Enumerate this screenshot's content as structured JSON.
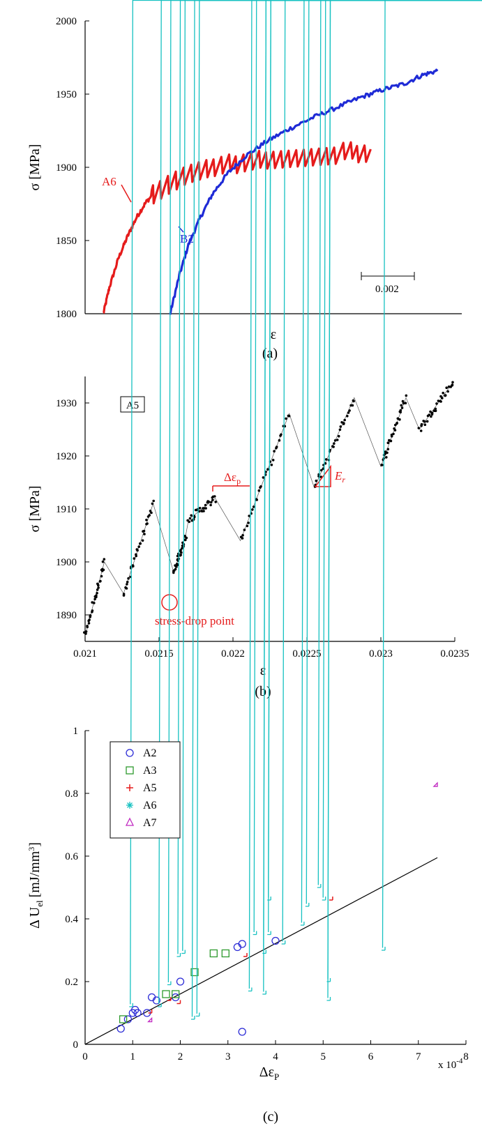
{
  "colors": {
    "A6_red": "#e51b1b",
    "B2_blue": "#1f2bd6",
    "black": "#000000",
    "A2": "#2b2bd6",
    "A3": "#2e9a2e",
    "A5": "#e51b1b",
    "A6": "#16c1c1",
    "A7": "#c12bc1",
    "fit": "#000000"
  },
  "chart_data": [
    {
      "panel": "a",
      "type": "line",
      "ylabel": "σ [MPa]",
      "xlabel": "ε",
      "panel_label": "(a)",
      "y_ticks": [
        "1800",
        "1850",
        "1900",
        "1950",
        "2000"
      ],
      "ylim": [
        1800,
        2000
      ],
      "xlim": [
        0,
        0.0124
      ],
      "scale_bar_label": "0.002",
      "annotations": [
        "A6",
        "B2"
      ],
      "series": [
        {
          "name": "A6",
          "color": "#e51b1b",
          "x": [
            0.0006,
            0.0008,
            0.0011,
            0.0014,
            0.0017,
            0.002,
            0.0023,
            0.0027,
            0.0031,
            0.0036,
            0.0041,
            0.0047,
            0.0053,
            0.0059,
            0.0066,
            0.0073,
            0.008,
            0.0087,
            0.0094
          ],
          "y": [
            1800,
            1818,
            1838,
            1853,
            1866,
            1876,
            1883,
            1888,
            1892,
            1896,
            1899,
            1902,
            1904,
            1906,
            1907,
            1908,
            1909,
            1910,
            1911
          ]
        },
        {
          "name": "B2",
          "color": "#1f2bd6",
          "x": [
            0.0028,
            0.0031,
            0.0034,
            0.0038,
            0.0042,
            0.0047,
            0.0053,
            0.006,
            0.0067,
            0.0075,
            0.0083,
            0.0091,
            0.0098,
            0.0105,
            0.0111,
            0.0116
          ],
          "y": [
            1800,
            1826,
            1847,
            1866,
            1882,
            1896,
            1908,
            1918,
            1926,
            1934,
            1941,
            1948,
            1953,
            1957,
            1963,
            1966
          ]
        }
      ]
    },
    {
      "panel": "b",
      "type": "scatter",
      "ylabel": "σ [MPa]",
      "xlabel": "ε",
      "panel_label": "(b)",
      "legend_box": "A5",
      "x_ticks": [
        "0.021",
        "0.0215",
        "0.022",
        "0.0225",
        "0.023",
        "0.0235"
      ],
      "y_ticks": [
        "1890",
        "1900",
        "1910",
        "1920",
        "1930"
      ],
      "xlim": [
        0.021,
        0.0235
      ],
      "ylim": [
        1885,
        1935
      ],
      "annotations": {
        "delta_ep": "Δε",
        "delta_ep_sub": "p",
        "Er": "E",
        "Er_sub": "r",
        "stress_drop": "stress-drop point"
      },
      "segments": [
        {
          "x0": 0.021,
          "y0": 1886,
          "x1": 0.02113,
          "y1": 1900
        },
        {
          "x0": 0.02126,
          "y0": 1894,
          "x1": 0.02146,
          "y1": 1911
        },
        {
          "x0": 0.0216,
          "y0": 1898,
          "x1": 0.02168,
          "y1": 1905
        },
        {
          "x0": 0.0217,
          "y0": 1908,
          "x1": 0.02188,
          "y1": 1912
        },
        {
          "x0": 0.02205,
          "y0": 1904,
          "x1": 0.02238,
          "y1": 1928
        },
        {
          "x0": 0.02255,
          "y0": 1914,
          "x1": 0.02282,
          "y1": 1931
        },
        {
          "x0": 0.023,
          "y0": 1918,
          "x1": 0.02317,
          "y1": 1931
        },
        {
          "x0": 0.02326,
          "y0": 1925,
          "x1": 0.02349,
          "y1": 1934
        }
      ]
    },
    {
      "panel": "c",
      "type": "scatter",
      "ylabel": "Δ U",
      "ylabel_sub": "el",
      "ylabel_unit": "[mJ/mm",
      "ylabel_sup": "3",
      "ylabel_close": "]",
      "xlabel": "Δε",
      "xlabel_sub": "P",
      "x_multiplier": "x 10",
      "x_multiplier_exp": "-4",
      "panel_label": "(c)",
      "x_ticks": [
        "0",
        "1",
        "2",
        "3",
        "4",
        "5",
        "6",
        "7",
        "8"
      ],
      "y_ticks": [
        "0",
        "0.2",
        "0.4",
        "0.6",
        "0.8",
        "1"
      ],
      "xlim": [
        0,
        8
      ],
      "ylim": [
        0,
        1
      ],
      "fit_line": {
        "x": [
          0,
          7.4
        ],
        "y": [
          0,
          0.595
        ]
      },
      "series": [
        {
          "name": "A2",
          "marker": "o",
          "x": [
            0.75,
            0.9,
            1.0,
            1.05,
            1.1,
            1.3,
            1.4,
            1.5,
            1.9,
            2.0,
            3.2,
            3.3,
            3.3,
            4.0
          ],
          "y": [
            0.05,
            0.08,
            0.1,
            0.11,
            0.1,
            0.1,
            0.15,
            0.14,
            0.15,
            0.2,
            0.31,
            0.32,
            0.04,
            0.33
          ]
        },
        {
          "name": "A3",
          "marker": "s",
          "x": [
            0.8,
            1.7,
            1.9,
            2.3,
            2.7,
            2.95
          ],
          "y": [
            0.08,
            0.16,
            0.16,
            0.23,
            0.29,
            0.29
          ]
        },
        {
          "name": "A5",
          "marker": "+",
          "x": [
            1.4,
            1.8,
            2.0,
            3.4,
            5.2
          ],
          "y": [
            0.1,
            0.14,
            0.13,
            0.28,
            0.46
          ]
        },
        {
          "name": "A6",
          "marker": "*",
          "x": [
            1.0,
            1.6,
            1.8,
            2.0,
            2.1,
            2.3,
            2.4,
            3.5,
            3.6,
            3.8,
            3.8,
            3.9,
            3.9,
            4.2,
            4.6,
            4.7,
            4.95,
            5.05,
            5.15,
            5.15,
            6.3
          ],
          "y": [
            0.12,
            0.12,
            0.19,
            0.28,
            0.29,
            0.08,
            0.09,
            0.17,
            0.35,
            0.29,
            0.16,
            0.35,
            0.46,
            0.32,
            0.38,
            0.44,
            0.5,
            0.46,
            0.2,
            0.14,
            0.3
          ]
        },
        {
          "name": "A7",
          "marker": "^",
          "x": [
            1.4,
            7.4
          ],
          "y": [
            0.07,
            0.82
          ]
        }
      ]
    }
  ]
}
